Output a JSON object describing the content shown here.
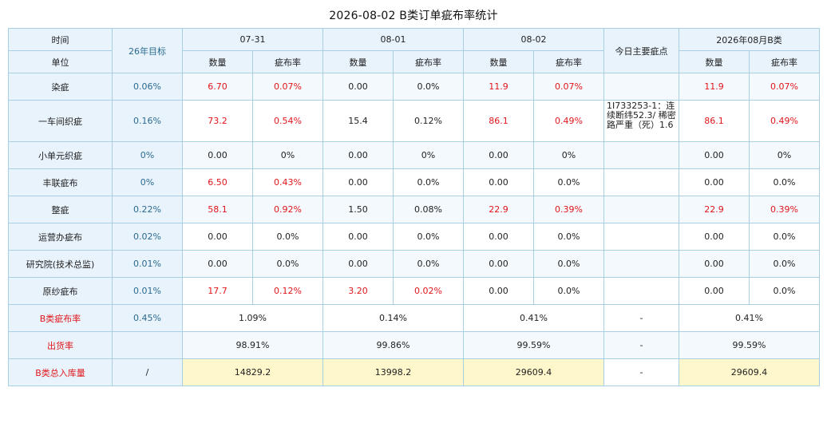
{
  "title": "2026-08-02 B类订单疵布率统计",
  "headers": {
    "time": "时间",
    "unit": "单位",
    "target": "26年目标",
    "dates": [
      "07-31",
      "08-01",
      "08-02"
    ],
    "main_defect": "今日主要疵点",
    "month": "2026年08月B类",
    "qty": "数量",
    "rate": "疵布率"
  },
  "rows": [
    {
      "label": "染疵",
      "target": "0.06%",
      "d1q": "6.70",
      "d1r": "0.07%",
      "d2q": "0.00",
      "d2r": "0.0%",
      "d3q": "11.9",
      "d3r": "0.07%",
      "note": "",
      "mq": "11.9",
      "mr": "0.07%"
    },
    {
      "label": "一车间织疵",
      "target": "0.16%",
      "d1q": "73.2",
      "d1r": "0.54%",
      "d2q": "15.4",
      "d2r": "0.12%",
      "d3q": "86.1",
      "d3r": "0.49%",
      "note": "1I733253-1：连续断纬52.3/ 稀密路严重（死）1.6",
      "mq": "86.1",
      "mr": "0.49%"
    },
    {
      "label": "小单元织疵",
      "target": "0%",
      "d1q": "0.00",
      "d1r": "0%",
      "d2q": "0.00",
      "d2r": "0%",
      "d3q": "0.00",
      "d3r": "0%",
      "note": "",
      "mq": "0.00",
      "mr": "0%"
    },
    {
      "label": "丰联疵布",
      "target": "0%",
      "d1q": "6.50",
      "d1r": "0.43%",
      "d2q": "0.00",
      "d2r": "0.0%",
      "d3q": "0.00",
      "d3r": "0.0%",
      "note": "",
      "mq": "0.00",
      "mr": "0.0%"
    },
    {
      "label": "整疵",
      "target": "0.22%",
      "d1q": "58.1",
      "d1r": "0.92%",
      "d2q": "1.50",
      "d2r": "0.08%",
      "d3q": "22.9",
      "d3r": "0.39%",
      "note": "",
      "mq": "22.9",
      "mr": "0.39%"
    },
    {
      "label": "运营办疵布",
      "target": "0.02%",
      "d1q": "0.00",
      "d1r": "0.0%",
      "d2q": "0.00",
      "d2r": "0.0%",
      "d3q": "0.00",
      "d3r": "0.0%",
      "note": "",
      "mq": "0.00",
      "mr": "0.0%"
    },
    {
      "label": "研究院(技术总监)",
      "target": "0.01%",
      "d1q": "0.00",
      "d1r": "0.0%",
      "d2q": "0.00",
      "d2r": "0.0%",
      "d3q": "0.00",
      "d3r": "0.0%",
      "note": "",
      "mq": "0.00",
      "mr": "0.0%"
    },
    {
      "label": "原纱疵布",
      "target": "0.01%",
      "d1q": "17.7",
      "d1r": "0.12%",
      "d2q": "3.20",
      "d2r": "0.02%",
      "d3q": "0.00",
      "d3r": "0.0%",
      "note": "",
      "mq": "0.00",
      "mr": "0.0%"
    }
  ],
  "summary": [
    {
      "label": "B类疵布率",
      "target": "0.45%",
      "d1": "1.09%",
      "d2": "0.14%",
      "d3": "0.41%",
      "note": "-",
      "m": "0.41%"
    },
    {
      "label": "出货率",
      "target": "",
      "d1": "98.91%",
      "d2": "99.86%",
      "d3": "99.59%",
      "note": "-",
      "m": "99.59%"
    },
    {
      "label": "B类总入库量",
      "target": "/",
      "d1": "14829.2",
      "d2": "13998.2",
      "d3": "29609.4",
      "note": "-",
      "m": "29609.4"
    }
  ],
  "colors": {
    "red": "#e0161b",
    "header_bg": "#e8f3fc",
    "border": "#a9cfe5",
    "highlight": "#fff7cc"
  }
}
